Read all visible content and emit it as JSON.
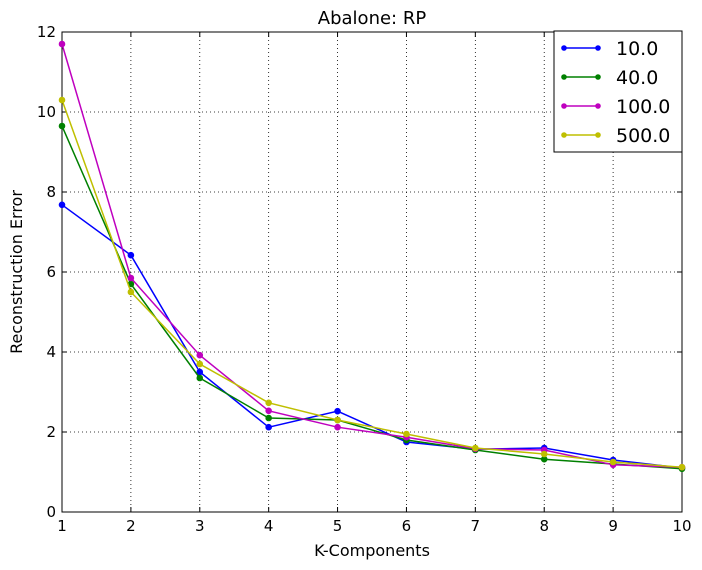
{
  "chart_data": {
    "type": "line",
    "title": "Abalone: RP",
    "xlabel": "K-Components",
    "ylabel": "Reconstruction Error",
    "xlim": [
      1,
      10
    ],
    "ylim": [
      0,
      12
    ],
    "xticks": [
      1,
      2,
      3,
      4,
      5,
      6,
      7,
      8,
      9,
      10
    ],
    "yticks": [
      0,
      2,
      4,
      6,
      8,
      10,
      12
    ],
    "grid": true,
    "legend_position": "top-right",
    "x": [
      1,
      2,
      3,
      4,
      5,
      6,
      7,
      8,
      9,
      10
    ],
    "series": [
      {
        "name": "10.0",
        "color": "#0000ff",
        "values": [
          7.68,
          6.42,
          3.5,
          2.12,
          2.52,
          1.75,
          1.57,
          1.6,
          1.3,
          1.1
        ]
      },
      {
        "name": "40.0",
        "color": "#008000",
        "values": [
          9.65,
          5.7,
          3.35,
          2.35,
          2.3,
          1.8,
          1.55,
          1.32,
          1.2,
          1.08
        ]
      },
      {
        "name": "100.0",
        "color": "#bf00bf",
        "values": [
          11.7,
          5.85,
          3.92,
          2.53,
          2.12,
          1.87,
          1.58,
          1.55,
          1.18,
          1.12
        ]
      },
      {
        "name": "500.0",
        "color": "#bfbf00",
        "values": [
          10.3,
          5.5,
          3.7,
          2.73,
          2.3,
          1.95,
          1.6,
          1.45,
          1.25,
          1.12
        ]
      }
    ]
  }
}
